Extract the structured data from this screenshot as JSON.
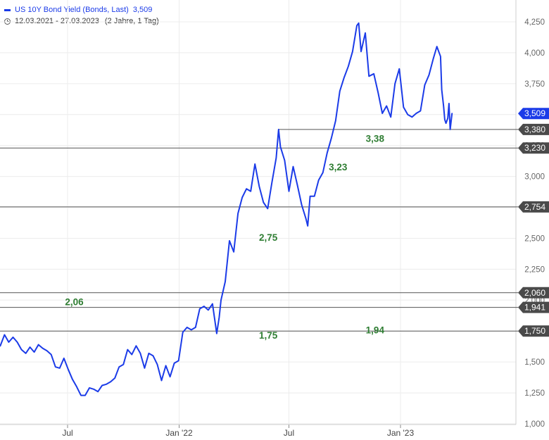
{
  "legend": {
    "series_name": "US 10Y Bond Yield (Bonds, Last)",
    "series_value": "3,509",
    "date_range": "12.03.2021 - 27.03.2023",
    "span": "(2 Jahre, 1 Tag)"
  },
  "colors": {
    "line": "#1b3be8",
    "level_line": "#555555",
    "annotation": "#2e7d32",
    "grid": "#ececec",
    "badge_gray": "#4a4a4a",
    "badge_blue": "#1b3be8"
  },
  "chart_data": {
    "type": "line",
    "series": [
      {
        "name": "US 10Y Bond Yield (Bonds, Last)",
        "x": [
          "2021-03-12",
          "2021-03-19",
          "2021-03-26",
          "2021-04-02",
          "2021-04-09",
          "2021-04-16",
          "2021-04-23",
          "2021-04-30",
          "2021-05-07",
          "2021-05-14",
          "2021-05-21",
          "2021-05-28",
          "2021-06-04",
          "2021-06-11",
          "2021-06-18",
          "2021-06-25",
          "2021-07-02",
          "2021-07-09",
          "2021-07-16",
          "2021-07-23",
          "2021-07-30",
          "2021-08-06",
          "2021-08-13",
          "2021-08-20",
          "2021-08-27",
          "2021-09-03",
          "2021-09-10",
          "2021-09-17",
          "2021-09-24",
          "2021-10-01",
          "2021-10-08",
          "2021-10-15",
          "2021-10-22",
          "2021-10-29",
          "2021-11-05",
          "2021-11-12",
          "2021-11-19",
          "2021-11-26",
          "2021-12-03",
          "2021-12-10",
          "2021-12-17",
          "2021-12-24",
          "2021-12-31",
          "2022-01-07",
          "2022-01-14",
          "2022-01-21",
          "2022-01-28",
          "2022-02-04",
          "2022-02-11",
          "2022-02-18",
          "2022-02-25",
          "2022-03-04",
          "2022-03-08",
          "2022-03-11",
          "2022-03-18",
          "2022-03-25",
          "2022-04-01",
          "2022-04-08",
          "2022-04-15",
          "2022-04-22",
          "2022-04-29",
          "2022-05-06",
          "2022-05-13",
          "2022-05-20",
          "2022-05-27",
          "2022-06-03",
          "2022-06-10",
          "2022-06-14",
          "2022-06-17",
          "2022-06-24",
          "2022-07-01",
          "2022-07-08",
          "2022-07-15",
          "2022-07-22",
          "2022-07-29",
          "2022-08-01",
          "2022-08-05",
          "2022-08-12",
          "2022-08-19",
          "2022-08-26",
          "2022-09-02",
          "2022-09-09",
          "2022-09-16",
          "2022-09-23",
          "2022-09-30",
          "2022-10-07",
          "2022-10-14",
          "2022-10-21",
          "2022-10-24",
          "2022-10-28",
          "2022-11-04",
          "2022-11-10",
          "2022-11-18",
          "2022-11-25",
          "2022-12-02",
          "2022-12-09",
          "2022-12-16",
          "2022-12-23",
          "2022-12-30",
          "2023-01-06",
          "2023-01-13",
          "2023-01-20",
          "2023-01-27",
          "2023-02-03",
          "2023-02-10",
          "2023-02-17",
          "2023-02-24",
          "2023-03-02",
          "2023-03-08",
          "2023-03-10",
          "2023-03-13",
          "2023-03-15",
          "2023-03-17",
          "2023-03-20",
          "2023-03-22",
          "2023-03-24",
          "2023-03-27"
        ],
        "values": [
          1.63,
          1.72,
          1.66,
          1.7,
          1.66,
          1.6,
          1.57,
          1.62,
          1.58,
          1.64,
          1.61,
          1.59,
          1.56,
          1.46,
          1.45,
          1.53,
          1.44,
          1.36,
          1.3,
          1.23,
          1.23,
          1.29,
          1.28,
          1.26,
          1.31,
          1.32,
          1.34,
          1.37,
          1.46,
          1.48,
          1.6,
          1.56,
          1.63,
          1.57,
          1.45,
          1.57,
          1.55,
          1.48,
          1.35,
          1.47,
          1.38,
          1.49,
          1.51,
          1.74,
          1.78,
          1.76,
          1.78,
          1.93,
          1.95,
          1.92,
          1.97,
          1.73,
          1.86,
          2.0,
          2.15,
          2.48,
          2.39,
          2.7,
          2.83,
          2.9,
          2.88,
          3.1,
          2.92,
          2.79,
          2.74,
          2.95,
          3.15,
          3.38,
          3.24,
          3.13,
          2.88,
          3.08,
          2.93,
          2.77,
          2.66,
          2.6,
          2.84,
          2.84,
          2.97,
          3.03,
          3.19,
          3.31,
          3.45,
          3.69,
          3.8,
          3.89,
          4.01,
          4.22,
          4.24,
          4.01,
          4.16,
          3.81,
          3.83,
          3.68,
          3.51,
          3.57,
          3.48,
          3.75,
          3.87,
          3.56,
          3.5,
          3.48,
          3.51,
          3.53,
          3.74,
          3.82,
          3.95,
          4.05,
          3.97,
          3.7,
          3.57,
          3.46,
          3.43,
          3.47,
          3.59,
          3.38,
          3.509
        ]
      }
    ],
    "ylim": [
      1.0,
      4.3
    ],
    "ytick_values": [
      1.0,
      1.25,
      1.5,
      1.75,
      2.0,
      2.25,
      2.5,
      2.75,
      3.0,
      3.25,
      3.5,
      3.75,
      4.0,
      4.25
    ],
    "ytick_labels": [
      "1,000",
      "1,250",
      "1,500",
      "1,750",
      "2,000",
      "2,250",
      "2,500",
      "2,750",
      "3,000",
      "3,250",
      "3,500",
      "3,750",
      "4,000",
      "4,250"
    ],
    "xticks": [
      {
        "date": "2021-07-01",
        "label": "Jul"
      },
      {
        "date": "2022-01-01",
        "label": "Jan '22"
      },
      {
        "date": "2022-07-01",
        "label": "Jul"
      },
      {
        "date": "2023-01-01",
        "label": "Jan '23"
      }
    ],
    "xlim": [
      "2021-03-12",
      "2023-06-15"
    ],
    "grid": true,
    "legend_position": "top-left",
    "horizontal_levels": [
      {
        "value": 3.38,
        "label": "3,380",
        "start": "2022-06-14"
      },
      {
        "value": 3.23,
        "label": "3,230",
        "start": "2021-03-12"
      },
      {
        "value": 2.754,
        "label": "2,754",
        "start": "2021-03-12"
      },
      {
        "value": 2.06,
        "label": "2,060",
        "start": "2021-03-12"
      },
      {
        "value": 1.941,
        "label": "1,941",
        "start": "2021-03-12"
      },
      {
        "value": 1.75,
        "label": "1,750",
        "start": "2021-03-12"
      }
    ],
    "last_value": {
      "value": 3.509,
      "label": "3,509"
    },
    "annotations": [
      {
        "text": "3,38",
        "x": "2022-11-20",
        "y": 3.28
      },
      {
        "text": "3,23",
        "x": "2022-09-20",
        "y": 3.05
      },
      {
        "text": "2,75",
        "x": "2022-05-28",
        "y": 2.48
      },
      {
        "text": "2,06",
        "x": "2021-07-12",
        "y": 1.96
      },
      {
        "text": "1,75",
        "x": "2022-05-28",
        "y": 1.69
      },
      {
        "text": "1,94",
        "x": "2022-11-20",
        "y": 1.73
      }
    ]
  }
}
